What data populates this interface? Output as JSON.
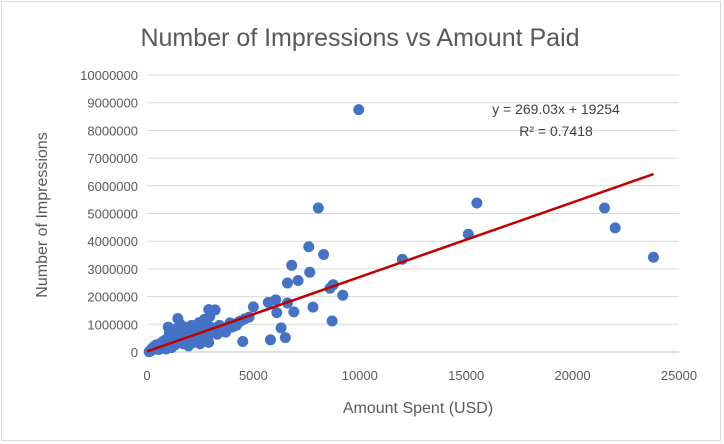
{
  "chart_data": {
    "type": "scatter",
    "title": "Number of Impressions vs Amount Paid",
    "xlabel": "Amount Spent (USD)",
    "ylabel": "Number of Impressions",
    "xlim": [
      0,
      25000
    ],
    "ylim": [
      0,
      10000000
    ],
    "x_ticks": [
      "0",
      "5000",
      "10000",
      "15000",
      "20000",
      "25000"
    ],
    "y_ticks": [
      "0",
      "1000000",
      "2000000",
      "3000000",
      "4000000",
      "5000000",
      "6000000",
      "7000000",
      "8000000",
      "9000000",
      "10000000"
    ],
    "grid": "horizontal",
    "marker_color": "#4472c4",
    "trendline_color": "#c00000",
    "trendline": {
      "slope": 269.03,
      "intercept": 19254,
      "x_range": [
        0,
        23800
      ]
    },
    "equation": "y = 269.03x + 19254",
    "r_squared": "R² = 0.7418",
    "points": [
      [
        9950,
        8750000
      ],
      [
        8050,
        5200000
      ],
      [
        15500,
        5380000
      ],
      [
        21500,
        5200000
      ],
      [
        22000,
        4480000
      ],
      [
        23800,
        3420000
      ],
      [
        15100,
        4250000
      ],
      [
        12000,
        3350000
      ],
      [
        7600,
        3800000
      ],
      [
        8300,
        3520000
      ],
      [
        6800,
        3130000
      ],
      [
        7650,
        2880000
      ],
      [
        7100,
        2580000
      ],
      [
        6600,
        2490000
      ],
      [
        8600,
        2300000
      ],
      [
        8750,
        2430000
      ],
      [
        9200,
        2050000
      ],
      [
        7800,
        1620000
      ],
      [
        8700,
        1120000
      ],
      [
        6600,
        1770000
      ],
      [
        6900,
        1450000
      ],
      [
        6050,
        1880000
      ],
      [
        5700,
        1790000
      ],
      [
        6100,
        1420000
      ],
      [
        5000,
        1630000
      ],
      [
        6300,
        870000
      ],
      [
        6500,
        520000
      ],
      [
        5800,
        440000
      ],
      [
        4500,
        380000
      ],
      [
        4600,
        1200000
      ],
      [
        4300,
        1080000
      ],
      [
        3900,
        1050000
      ],
      [
        3700,
        720000
      ],
      [
        3400,
        960000
      ],
      [
        3200,
        1520000
      ],
      [
        2900,
        1530000
      ],
      [
        2950,
        1280000
      ],
      [
        2700,
        1180000
      ],
      [
        2450,
        1060000
      ],
      [
        2200,
        760000
      ],
      [
        2000,
        820000
      ],
      [
        1800,
        900000
      ],
      [
        1450,
        1210000
      ],
      [
        1550,
        1010000
      ],
      [
        1000,
        900000
      ],
      [
        1200,
        720000
      ],
      [
        1350,
        680000
      ],
      [
        1100,
        520000
      ],
      [
        900,
        450000
      ],
      [
        750,
        380000
      ],
      [
        600,
        290000
      ],
      [
        500,
        200000
      ],
      [
        400,
        150000
      ],
      [
        300,
        100000
      ],
      [
        200,
        60000
      ],
      [
        150,
        30000
      ],
      [
        100,
        10000
      ],
      [
        700,
        240000
      ],
      [
        850,
        310000
      ],
      [
        950,
        280000
      ],
      [
        1050,
        350000
      ],
      [
        1150,
        400000
      ],
      [
        1250,
        390000
      ],
      [
        1400,
        470000
      ],
      [
        1500,
        560000
      ],
      [
        1650,
        600000
      ],
      [
        1750,
        520000
      ],
      [
        1900,
        640000
      ],
      [
        2050,
        580000
      ],
      [
        2150,
        700000
      ],
      [
        2300,
        610000
      ],
      [
        2400,
        540000
      ],
      [
        2550,
        720000
      ],
      [
        2650,
        650000
      ],
      [
        2750,
        480000
      ],
      [
        2850,
        560000
      ],
      [
        2600,
        400000
      ],
      [
        1700,
        300000
      ],
      [
        1600,
        420000
      ],
      [
        1300,
        250000
      ],
      [
        800,
        180000
      ],
      [
        650,
        130000
      ],
      [
        550,
        90000
      ],
      [
        450,
        260000
      ],
      [
        350,
        210000
      ],
      [
        250,
        140000
      ],
      [
        1850,
        380000
      ],
      [
        2000,
        460000
      ],
      [
        2200,
        350000
      ],
      [
        2500,
        300000
      ],
      [
        1950,
        220000
      ],
      [
        1450,
        330000
      ],
      [
        1150,
        160000
      ],
      [
        900,
        110000
      ],
      [
        2700,
        820000
      ],
      [
        3000,
        900000
      ],
      [
        3300,
        640000
      ],
      [
        3500,
        820000
      ],
      [
        4000,
        900000
      ],
      [
        4200,
        960000
      ],
      [
        4400,
        1120000
      ],
      [
        4800,
        1260000
      ],
      [
        2350,
        880000
      ],
      [
        2100,
        960000
      ],
      [
        1800,
        700000
      ],
      [
        1550,
        780000
      ],
      [
        1350,
        820000
      ],
      [
        1250,
        610000
      ],
      [
        1050,
        700000
      ],
      [
        2900,
        350000
      ]
    ]
  }
}
